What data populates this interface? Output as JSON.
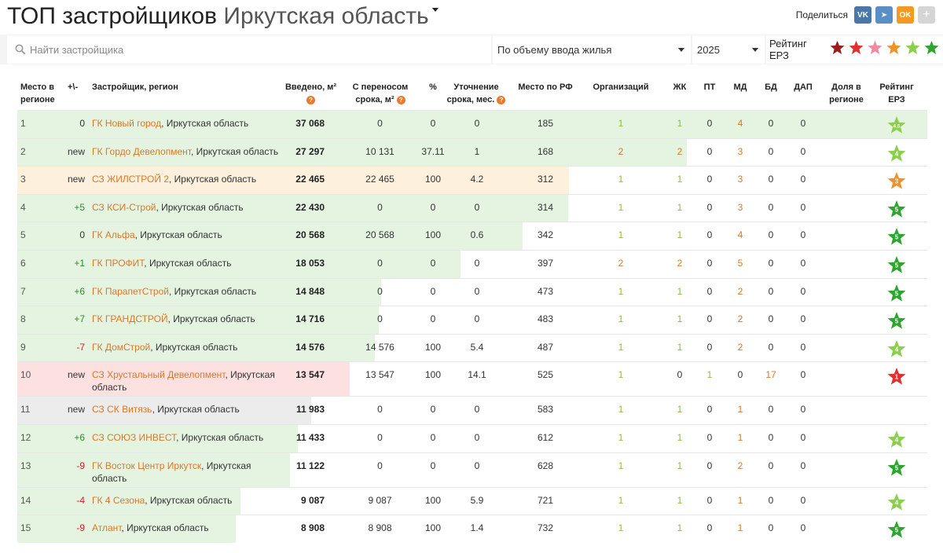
{
  "header": {
    "title": "ТОП застройщиков",
    "region": "Иркутская область",
    "share_label": "Поделиться",
    "share_buttons": [
      {
        "name": "vk-icon",
        "label": "VK",
        "cls": "vk"
      },
      {
        "name": "telegram-icon",
        "label": "➤",
        "cls": "tg"
      },
      {
        "name": "odnoklassniki-icon",
        "label": "OK",
        "cls": "ok"
      },
      {
        "name": "plus-icon",
        "label": "+",
        "cls": "plus"
      }
    ]
  },
  "filters": {
    "search_placeholder": "Найти застройщика",
    "metric": "По объему ввода жилья",
    "year": "2025",
    "rating_label": "Рейтинг ЕРЗ",
    "rating_star_colors": [
      "#9b1c1c",
      "#e03030",
      "#f08aa0",
      "#f0922b",
      "#8ccf4d",
      "#2ea52e"
    ]
  },
  "columns": {
    "rank": "Место в регионе",
    "change": "+\\-",
    "developer": "Застройщик, регион",
    "introduced": "Введено, м²",
    "postponed": "С переносом срока, м²",
    "pct": "%",
    "refinement": "Уточнение срока, мес.",
    "rf_rank": "Место по РФ",
    "orgs": "Организаций",
    "zhk": "ЖК",
    "pt": "ПТ",
    "md": "МД",
    "bd": "БД",
    "dap": "ДАП",
    "share": "Доля в регионе",
    "rating": "Рейтинг ЕРЗ"
  },
  "rows": [
    {
      "rank": "1",
      "change": "0",
      "name": "ГК Новый город",
      "region": ", Иркутская область",
      "introduced": "37 068",
      "postponed": "0",
      "pct": "0",
      "refinement": "0",
      "rf_rank": "185",
      "orgs": "1",
      "zhk": "1",
      "pt": "0",
      "md": "4",
      "bd": "0",
      "dap": "0",
      "share": "",
      "rating": "4.5",
      "bar": 1.0,
      "bar_color": "#e5f4e0",
      "star_color": "#8ccf4d"
    },
    {
      "rank": "2",
      "change": "new",
      "name": "ГК Гордо Девелопмент",
      "region": ", Иркутская область",
      "introduced": "27 297",
      "postponed": "10 131",
      "pct": "37.11",
      "refinement": "1",
      "rf_rank": "168",
      "orgs": "2",
      "zhk": "2",
      "pt": "0",
      "md": "3",
      "bd": "0",
      "dap": "0",
      "share": "",
      "rating": "4",
      "bar": 0.736,
      "bar_color": "#e5f4e0",
      "star_color": "#8ccf4d"
    },
    {
      "rank": "3",
      "change": "new",
      "name": "СЗ ЖИЛСТРОЙ 2",
      "region": ", Иркутская область",
      "introduced": "22 465",
      "postponed": "22 465",
      "pct": "100",
      "refinement": "4.2",
      "rf_rank": "312",
      "orgs": "1",
      "zhk": "1",
      "pt": "0",
      "md": "3",
      "bd": "0",
      "dap": "0",
      "share": "",
      "rating": "3",
      "bar": 0.606,
      "bar_color": "#fdf0dd",
      "star_color": "#f0922b"
    },
    {
      "rank": "4",
      "change": "+5",
      "name": "СЗ КСИ-Строй",
      "region": ", Иркутская область",
      "introduced": "22 430",
      "postponed": "0",
      "pct": "0",
      "refinement": "0",
      "rf_rank": "314",
      "orgs": "1",
      "zhk": "1",
      "pt": "0",
      "md": "3",
      "bd": "0",
      "dap": "0",
      "share": "",
      "rating": "5",
      "bar": 0.605,
      "bar_color": "#e5f4e0",
      "star_color": "#2ea52e"
    },
    {
      "rank": "5",
      "change": "0",
      "name": "ГК Альфа",
      "region": ", Иркутская область",
      "introduced": "20 568",
      "postponed": "20 568",
      "pct": "100",
      "refinement": "0.6",
      "rf_rank": "342",
      "orgs": "1",
      "zhk": "1",
      "pt": "0",
      "md": "4",
      "bd": "0",
      "dap": "0",
      "share": "",
      "rating": "5",
      "bar": 0.555,
      "bar_color": "#e5f4e0",
      "star_color": "#2ea52e"
    },
    {
      "rank": "6",
      "change": "+1",
      "name": "ГК ПРОФИТ",
      "region": ", Иркутская область",
      "introduced": "18 053",
      "postponed": "0",
      "pct": "0",
      "refinement": "0",
      "rf_rank": "397",
      "orgs": "2",
      "zhk": "2",
      "pt": "0",
      "md": "5",
      "bd": "0",
      "dap": "0",
      "share": "",
      "rating": "5",
      "bar": 0.487,
      "bar_color": "#e5f4e0",
      "star_color": "#2ea52e"
    },
    {
      "rank": "7",
      "change": "+6",
      "name": "ГК ПарапетСтрой",
      "region": ", Иркутская область",
      "introduced": "14 848",
      "postponed": "0",
      "pct": "0",
      "refinement": "0",
      "rf_rank": "473",
      "orgs": "1",
      "zhk": "1",
      "pt": "0",
      "md": "2",
      "bd": "0",
      "dap": "0",
      "share": "",
      "rating": "5",
      "bar": 0.4,
      "bar_color": "#e5f4e0",
      "star_color": "#2ea52e"
    },
    {
      "rank": "8",
      "change": "+7",
      "name": "ГК ГРАНДСТРОЙ",
      "region": ", Иркутская область",
      "introduced": "14 716",
      "postponed": "0",
      "pct": "0",
      "refinement": "0",
      "rf_rank": "483",
      "orgs": "1",
      "zhk": "1",
      "pt": "0",
      "md": "2",
      "bd": "0",
      "dap": "0",
      "share": "",
      "rating": "5",
      "bar": 0.397,
      "bar_color": "#e5f4e0",
      "star_color": "#2ea52e"
    },
    {
      "rank": "9",
      "change": "-7",
      "name": "ГК ДомСтрой",
      "region": ", Иркутская область",
      "introduced": "14 576",
      "postponed": "14 576",
      "pct": "100",
      "refinement": "5.4",
      "rf_rank": "487",
      "orgs": "1",
      "zhk": "1",
      "pt": "0",
      "md": "2",
      "bd": "0",
      "dap": "0",
      "share": "",
      "rating": "4",
      "bar": 0.393,
      "bar_color": "#e5f4e0",
      "star_color": "#8ccf4d"
    },
    {
      "rank": "10",
      "change": "new",
      "name": "СЗ Хрустальный Девелопмент",
      "region": ", Иркутская область",
      "introduced": "13 547",
      "postponed": "13 547",
      "pct": "100",
      "refinement": "14.1",
      "rf_rank": "525",
      "orgs": "1",
      "zhk": "0",
      "pt": "1",
      "md": "0",
      "bd": "17",
      "dap": "0",
      "share": "",
      "rating": "1",
      "bar": 0.365,
      "bar_color": "#fde0e0",
      "star_color": "#e03030",
      "tall": true
    },
    {
      "rank": "11",
      "change": "new",
      "name": "СЗ СК Витязь",
      "region": ", Иркутская область",
      "introduced": "11 983",
      "postponed": "0",
      "pct": "0",
      "refinement": "0",
      "rf_rank": "583",
      "orgs": "1",
      "zhk": "1",
      "pt": "0",
      "md": "1",
      "bd": "0",
      "dap": "0",
      "share": "",
      "rating": "",
      "bar": 0.323,
      "bar_color": "#ececec",
      "star_color": ""
    },
    {
      "rank": "12",
      "change": "+6",
      "name": "СЗ СОЮЗ ИНВЕСТ",
      "region": ", Иркутская область",
      "introduced": "11 433",
      "postponed": "0",
      "pct": "0",
      "refinement": "0",
      "rf_rank": "612",
      "orgs": "1",
      "zhk": "1",
      "pt": "0",
      "md": "1",
      "bd": "0",
      "dap": "0",
      "share": "",
      "rating": "4",
      "bar": 0.308,
      "bar_color": "#e5f4e0",
      "star_color": "#8ccf4d"
    },
    {
      "rank": "13",
      "change": "-9",
      "name": "ГК Восток Центр Иркутск",
      "region": ", Иркутская область",
      "introduced": "11 122",
      "postponed": "0",
      "pct": "0",
      "refinement": "0",
      "rf_rank": "628",
      "orgs": "1",
      "zhk": "1",
      "pt": "0",
      "md": "2",
      "bd": "0",
      "dap": "0",
      "share": "",
      "rating": "5",
      "bar": 0.3,
      "bar_color": "#e5f4e0",
      "star_color": "#2ea52e",
      "tall": true
    },
    {
      "rank": "14",
      "change": "-4",
      "name": "ГК 4 Сезона",
      "region": ", Иркутская область",
      "introduced": "9 087",
      "postponed": "9 087",
      "pct": "100",
      "refinement": "5.9",
      "rf_rank": "721",
      "orgs": "1",
      "zhk": "1",
      "pt": "0",
      "md": "1",
      "bd": "0",
      "dap": "0",
      "share": "",
      "rating": "4",
      "bar": 0.245,
      "bar_color": "#e5f4e0",
      "star_color": "#8ccf4d"
    },
    {
      "rank": "15",
      "change": "-9",
      "name": "Атлант",
      "region": ", Иркутская область",
      "introduced": "8 908",
      "postponed": "8 908",
      "pct": "100",
      "refinement": "1.4",
      "rf_rank": "732",
      "orgs": "1",
      "zhk": "1",
      "pt": "0",
      "md": "1",
      "bd": "0",
      "dap": "0",
      "share": "",
      "rating": "5",
      "bar": 0.24,
      "bar_color": "#e5f4e0",
      "star_color": "#2ea52e"
    }
  ]
}
